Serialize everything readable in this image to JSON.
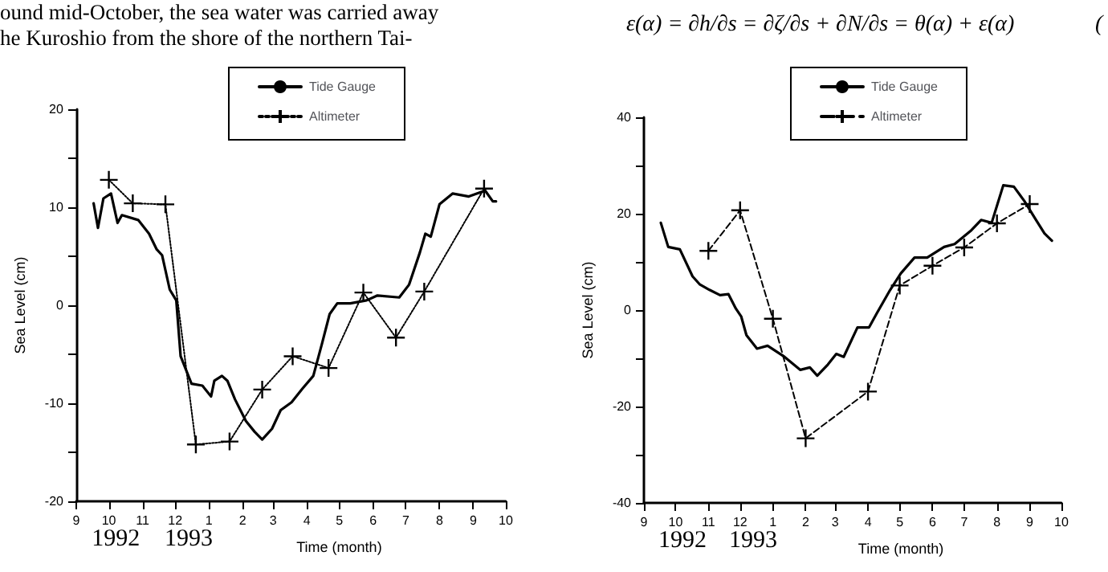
{
  "chart_data": [
    {
      "type": "other",
      "annotations": [
        "ound mid-October, the sea water was carried away",
        "he Kuroshio from the shore of the northern Tai-",
        "ε(α) = ∂h/∂s = ∂ζ/∂s + ∂N/∂s = θ(α) + ε(α)",
        "("
      ]
    },
    {
      "type": "line",
      "xlabel": "Time (month)",
      "ylabel": "Sea Level (cm)",
      "annotations": [
        "1992",
        "1993"
      ],
      "legend": "top right",
      "grid": false,
      "xlim": [
        "1992-09",
        "1993-10"
      ],
      "xticks": [
        {
          "value": "1992-09",
          "label": "9"
        },
        {
          "value": "1992-10",
          "label": "10"
        },
        {
          "value": "1992-11",
          "label": "11"
        },
        {
          "value": "1992-12",
          "label": "12"
        },
        {
          "value": "1993-01",
          "label": "1"
        },
        {
          "value": "1993-02",
          "label": "2"
        },
        {
          "value": "1993-03",
          "label": "3"
        },
        {
          "value": "1993-04",
          "label": "4"
        },
        {
          "value": "1993-05",
          "label": "5"
        },
        {
          "value": "1993-06",
          "label": "6"
        },
        {
          "value": "1993-07",
          "label": "7"
        },
        {
          "value": "1993-08",
          "label": "8"
        },
        {
          "value": "1993-09",
          "label": "9"
        },
        {
          "value": "1993-10",
          "label": "10"
        }
      ],
      "ylim": [
        -20,
        20
      ],
      "yticks": [
        -20,
        {
          "value": -15,
          "label": null
        },
        -10,
        {
          "value": -5,
          "label": null
        },
        0,
        {
          "value": 5,
          "label": null
        },
        10,
        {
          "value": 15,
          "label": null
        },
        20
      ],
      "series": [
        {
          "name": "Tide Gauge",
          "color": "#000000",
          "marker": "none",
          "line_style": "solid",
          "x": [
            "1992-09-17",
            "1992-09-21",
            "1992-09-26",
            "1992-10-03",
            "1992-10-09",
            "1992-10-13",
            "1992-10-28",
            "1992-11-07",
            "1992-11-14",
            "1992-11-19",
            "1992-11-26",
            "1992-12-02",
            "1992-12-06",
            "1992-12-16",
            "1992-12-26",
            "1993-01-03",
            "1993-01-06",
            "1993-01-13",
            "1993-01-18",
            "1993-01-25",
            "1993-02-04",
            "1993-02-12",
            "1993-02-19",
            "1993-02-28",
            "1993-03-08",
            "1993-03-18",
            "1993-03-28",
            "1993-04-07",
            "1993-04-15",
            "1993-04-22",
            "1993-04-29",
            "1993-05-11",
            "1993-05-26",
            "1993-06-05",
            "1993-06-25",
            "1993-07-04",
            "1993-07-14",
            "1993-07-19",
            "1993-07-24",
            "1993-08-01",
            "1993-08-13",
            "1993-08-28",
            "1993-09-12",
            "1993-09-19",
            "1993-09-22"
          ],
          "values": [
            10.4,
            7.9,
            10.9,
            11.4,
            8.4,
            9.2,
            8.7,
            7.3,
            5.7,
            5.1,
            1.6,
            0.5,
            -5.2,
            -8.0,
            -8.2,
            -9.3,
            -7.7,
            -7.2,
            -7.7,
            -9.6,
            -11.8,
            -12.9,
            -13.7,
            -12.6,
            -10.7,
            -9.9,
            -8.5,
            -7.2,
            -3.9,
            -0.9,
            0.2,
            0.2,
            0.5,
            1.0,
            0.8,
            2.1,
            5.4,
            7.3,
            7.0,
            10.3,
            11.4,
            11.1,
            11.7,
            10.6,
            10.6
          ]
        },
        {
          "name": "Altimeter",
          "color": "#000000",
          "marker": "cross",
          "line_style": "dotted",
          "x": [
            "1992-10-01",
            "1992-10-23",
            "1992-11-22",
            "1992-12-20",
            "1993-01-20",
            "1993-02-19",
            "1993-03-19",
            "1993-04-21",
            "1993-05-23",
            "1993-06-22",
            "1993-07-18",
            "1993-09-11"
          ],
          "values": [
            12.8,
            10.4,
            10.3,
            -14.2,
            -13.9,
            -8.6,
            -5.2,
            -6.4,
            1.3,
            -3.3,
            1.4,
            11.9
          ]
        }
      ]
    },
    {
      "type": "line",
      "xlabel": "Time (month)",
      "ylabel": "Sea Level (cm)",
      "annotations": [
        "1992",
        "1993"
      ],
      "legend": "top right",
      "grid": false,
      "xlim": [
        "1992-09",
        "1993-10"
      ],
      "xticks": [
        {
          "value": "1992-09",
          "label": "9"
        },
        {
          "value": "1992-10",
          "label": "10"
        },
        {
          "value": "1992-11",
          "label": "11"
        },
        {
          "value": "1992-12",
          "label": "12"
        },
        {
          "value": "1993-01",
          "label": "1"
        },
        {
          "value": "1993-02",
          "label": "2"
        },
        {
          "value": "1993-03",
          "label": "3"
        },
        {
          "value": "1993-04",
          "label": "4"
        },
        {
          "value": "1993-05",
          "label": "5"
        },
        {
          "value": "1993-06",
          "label": "6"
        },
        {
          "value": "1993-07",
          "label": "7"
        },
        {
          "value": "1993-08",
          "label": "8"
        },
        {
          "value": "1993-09",
          "label": "9"
        },
        {
          "value": "1993-10",
          "label": "10"
        }
      ],
      "ylim": [
        -40,
        40
      ],
      "yticks": [
        -40,
        {
          "value": -30,
          "label": null
        },
        -20,
        {
          "value": -10,
          "label": null
        },
        0,
        {
          "value": 10,
          "label": null
        },
        20,
        {
          "value": 30,
          "label": null
        },
        40
      ],
      "series": [
        {
          "name": "Tide Gauge",
          "color": "#000000",
          "marker": "none",
          "line_style": "solid",
          "x": [
            "1992-09-17",
            "1992-09-24",
            "1992-10-05",
            "1992-10-17",
            "1992-10-24",
            "1992-11-02",
            "1992-11-12",
            "1992-11-20",
            "1992-11-27",
            "1992-12-02",
            "1992-12-07",
            "1992-12-17",
            "1992-12-27",
            "1993-01-12",
            "1993-01-27",
            "1993-02-05",
            "1993-02-12",
            "1993-02-22",
            "1993-03-02",
            "1993-03-09",
            "1993-03-22",
            "1993-04-02",
            "1993-04-09",
            "1993-04-22",
            "1993-05-02",
            "1993-05-15",
            "1993-05-27",
            "1993-06-12",
            "1993-06-22",
            "1993-07-07",
            "1993-07-17",
            "1993-07-27",
            "1993-08-07",
            "1993-08-17",
            "1993-08-27",
            "1993-09-07",
            "1993-09-15",
            "1993-09-22"
          ],
          "values": [
            18.1,
            13.1,
            12.6,
            7.0,
            5.3,
            4.2,
            3.1,
            3.3,
            0.3,
            -1.3,
            -5.2,
            -8.0,
            -7.4,
            -9.7,
            -12.4,
            -11.9,
            -13.6,
            -11.3,
            -9.1,
            -9.7,
            -3.6,
            -3.6,
            -0.8,
            4.2,
            7.6,
            10.9,
            10.9,
            13.1,
            13.7,
            16.4,
            18.7,
            18.1,
            25.9,
            25.6,
            22.6,
            18.7,
            15.9,
            14.4
          ]
        },
        {
          "name": "Altimeter",
          "color": "#000000",
          "marker": "cross",
          "line_style": "dashed",
          "x": [
            "1992-11-01",
            "1992-12-01",
            "1993-01-01",
            "1993-02-01",
            "1993-04-01",
            "1993-05-01",
            "1993-06-01",
            "1993-07-01",
            "1993-08-01",
            "1993-09-01"
          ],
          "values": [
            12.3,
            20.7,
            -1.8,
            -26.6,
            -16.9,
            5.1,
            9.2,
            13.0,
            18.0,
            22.0
          ]
        }
      ]
    }
  ]
}
